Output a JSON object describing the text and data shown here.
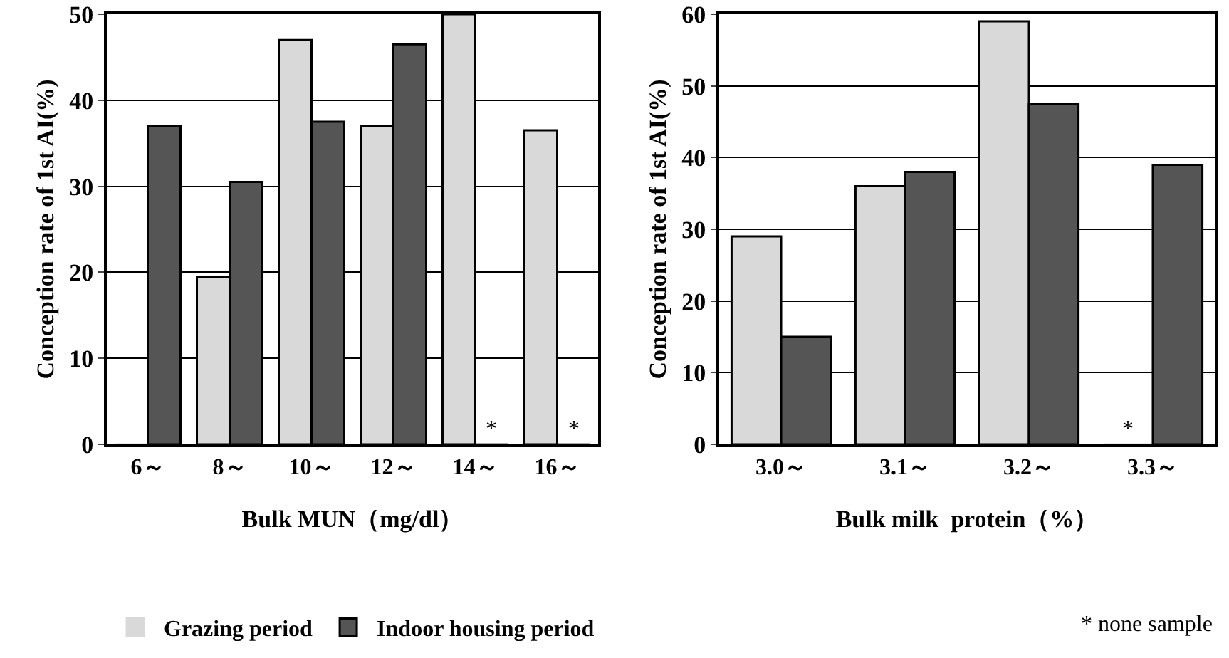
{
  "chart_data": [
    {
      "type": "bar",
      "xlabel": "Bulk MUN（mg/dl）",
      "ylabel": "Conception rate of 1st AI(%)",
      "categories": [
        "6～",
        "8～",
        "10～",
        "12～",
        "14～",
        "16～"
      ],
      "series": [
        {
          "name": "Grazing period",
          "color": "#d9d9d9",
          "values": [
            0,
            19.5,
            47,
            37,
            50,
            36.5
          ]
        },
        {
          "name": "Indoor housing period",
          "color": "#555555",
          "values": [
            37,
            30.5,
            37.5,
            46.5,
            0,
            0
          ]
        }
      ],
      "ylim": [
        0,
        50
      ],
      "yticks": [
        0,
        10,
        20,
        30,
        40,
        50
      ],
      "grid": "y",
      "legend": "bottom",
      "annotations": [
        {
          "text": "*",
          "x": "14～",
          "y": 0
        },
        {
          "text": "*",
          "x": "16～",
          "y": 0
        }
      ]
    },
    {
      "type": "bar",
      "xlabel": "Bulk milk  protein（%）",
      "ylabel": "Conception rate of 1st AI(%)",
      "categories": [
        "3.0～",
        "3.1～",
        "3.2～",
        "3.3～"
      ],
      "series": [
        {
          "color": "#d9d9d9",
          "values": [
            29,
            36,
            59,
            0
          ]
        },
        {
          "color": "#555555",
          "values": [
            15,
            38,
            47.5,
            39
          ]
        }
      ],
      "ylim": [
        0,
        60
      ],
      "yticks": [
        0,
        10,
        20,
        30,
        40,
        50,
        60
      ],
      "grid": "y",
      "annotations": [
        {
          "text": "*",
          "x": "3.3～",
          "y": 0
        },
        "* none sample"
      ]
    }
  ]
}
